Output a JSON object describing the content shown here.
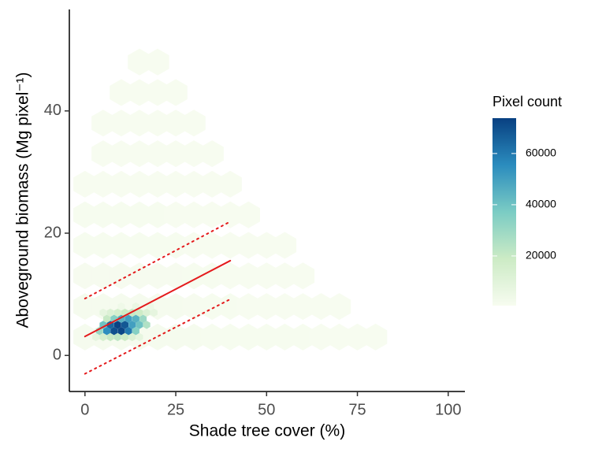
{
  "chart_data": {
    "type": "hexbin",
    "x_label": "Shade tree cover (%)",
    "y_label": "Aboveground biomass (Mg pixel⁻¹)",
    "legend_title": "Pixel count",
    "xlim": [
      -4.3,
      104.6
    ],
    "ylim": [
      -5.9,
      56.6
    ],
    "xticks": [
      0,
      25,
      50,
      75,
      100
    ],
    "yticks": [
      0,
      20,
      40
    ],
    "clim": [
      600,
      73800
    ],
    "cticks": [
      20000,
      40000,
      60000
    ],
    "colors": [
      "#f7fcf0",
      "#ccebc5",
      "#7bccc4",
      "#2b8cbe",
      "#084081"
    ],
    "cells": [
      [
        0,
        3,
        1500
      ],
      [
        5,
        3,
        1500
      ],
      [
        10,
        3,
        1500
      ],
      [
        15,
        3,
        1500
      ],
      [
        20,
        3,
        1500
      ],
      [
        25,
        3,
        1500
      ],
      [
        30,
        3,
        1500
      ],
      [
        35,
        3,
        900
      ],
      [
        40,
        3,
        900
      ],
      [
        45,
        3,
        900
      ],
      [
        50,
        3,
        900
      ],
      [
        55,
        3,
        900
      ],
      [
        60,
        3,
        900
      ],
      [
        65,
        3,
        300
      ],
      [
        70,
        3,
        300
      ],
      [
        75,
        3,
        300
      ],
      [
        80,
        3,
        300
      ],
      [
        0,
        8,
        1500
      ],
      [
        5,
        8,
        1500
      ],
      [
        10,
        8,
        1500
      ],
      [
        15,
        8,
        1500
      ],
      [
        20,
        8,
        1500
      ],
      [
        25,
        8,
        1500
      ],
      [
        30,
        8,
        1200
      ],
      [
        35,
        8,
        900
      ],
      [
        40,
        8,
        900
      ],
      [
        45,
        8,
        600
      ],
      [
        50,
        8,
        600
      ],
      [
        55,
        8,
        300
      ],
      [
        60,
        8,
        300
      ],
      [
        65,
        8,
        300
      ],
      [
        70,
        8,
        300
      ],
      [
        0,
        13,
        1200
      ],
      [
        5,
        13,
        1200
      ],
      [
        10,
        13,
        1200
      ],
      [
        15,
        13,
        1200
      ],
      [
        20,
        13,
        1200
      ],
      [
        25,
        13,
        1200
      ],
      [
        30,
        13,
        900
      ],
      [
        35,
        13,
        900
      ],
      [
        40,
        13,
        600
      ],
      [
        45,
        13,
        600
      ],
      [
        50,
        13,
        300
      ],
      [
        55,
        13,
        300
      ],
      [
        60,
        13,
        300
      ],
      [
        0,
        18,
        900
      ],
      [
        5,
        18,
        900
      ],
      [
        10,
        18,
        900
      ],
      [
        15,
        18,
        900
      ],
      [
        20,
        18,
        900
      ],
      [
        25,
        18,
        900
      ],
      [
        30,
        18,
        600
      ],
      [
        35,
        18,
        600
      ],
      [
        40,
        18,
        600
      ],
      [
        45,
        18,
        300
      ],
      [
        50,
        18,
        300
      ],
      [
        55,
        18,
        300
      ],
      [
        0,
        23,
        900
      ],
      [
        5,
        23,
        900
      ],
      [
        10,
        23,
        900
      ],
      [
        15,
        23,
        900
      ],
      [
        20,
        23,
        900
      ],
      [
        25,
        23,
        600
      ],
      [
        30,
        23,
        600
      ],
      [
        35,
        23,
        300
      ],
      [
        40,
        23,
        300
      ],
      [
        45,
        23,
        300
      ],
      [
        0,
        28,
        600
      ],
      [
        5,
        28,
        600
      ],
      [
        10,
        28,
        600
      ],
      [
        15,
        28,
        600
      ],
      [
        20,
        28,
        600
      ],
      [
        25,
        28,
        600
      ],
      [
        30,
        28,
        300
      ],
      [
        35,
        28,
        300
      ],
      [
        40,
        28,
        300
      ],
      [
        5,
        33,
        600
      ],
      [
        10,
        33,
        600
      ],
      [
        15,
        33,
        600
      ],
      [
        20,
        33,
        600
      ],
      [
        25,
        33,
        300
      ],
      [
        30,
        33,
        300
      ],
      [
        35,
        33,
        300
      ],
      [
        5,
        38,
        300
      ],
      [
        10,
        38,
        300
      ],
      [
        15,
        38,
        300
      ],
      [
        20,
        38,
        300
      ],
      [
        25,
        38,
        300
      ],
      [
        30,
        38,
        300
      ],
      [
        10,
        43,
        300
      ],
      [
        15,
        43,
        300
      ],
      [
        20,
        43,
        300
      ],
      [
        25,
        43,
        300
      ],
      [
        15,
        48,
        300
      ],
      [
        20,
        48,
        300
      ],
      [
        3,
        3,
        8000
      ],
      [
        5,
        3,
        15000
      ],
      [
        7,
        3,
        20000
      ],
      [
        9,
        3,
        22000
      ],
      [
        11,
        3,
        18000
      ],
      [
        13,
        3,
        12000
      ],
      [
        15,
        3,
        8000
      ],
      [
        4,
        4,
        30000
      ],
      [
        6,
        4,
        55000
      ],
      [
        8,
        4,
        70000
      ],
      [
        10,
        4,
        72000
      ],
      [
        12,
        4,
        60000
      ],
      [
        14,
        4,
        35000
      ],
      [
        5,
        5,
        40000
      ],
      [
        7,
        5,
        65000
      ],
      [
        9,
        5,
        73000
      ],
      [
        11,
        5,
        68000
      ],
      [
        13,
        5,
        50000
      ],
      [
        15,
        5,
        40000
      ],
      [
        17,
        5,
        25000
      ],
      [
        6,
        6,
        20000
      ],
      [
        8,
        6,
        35000
      ],
      [
        10,
        6,
        45000
      ],
      [
        12,
        6,
        50000
      ],
      [
        14,
        6,
        45000
      ],
      [
        16,
        6,
        30000
      ],
      [
        5,
        7,
        8000
      ],
      [
        7,
        7,
        12000
      ],
      [
        9,
        7,
        15000
      ],
      [
        11,
        7,
        18000
      ],
      [
        13,
        7,
        20000
      ],
      [
        15,
        7,
        18000
      ],
      [
        17,
        7,
        12000
      ],
      [
        19,
        7,
        8000
      ],
      [
        10,
        8,
        4000
      ],
      [
        14,
        8,
        6000
      ],
      [
        18,
        8,
        5000
      ]
    ],
    "lines": [
      {
        "style": "solid",
        "color": "#e41a1c",
        "x": [
          0,
          40
        ],
        "y": [
          3.1,
          15.5
        ]
      },
      {
        "style": "dotted",
        "color": "#e41a1c",
        "x": [
          0,
          40
        ],
        "y": [
          9.3,
          21.9
        ]
      },
      {
        "style": "dotted",
        "color": "#e41a1c",
        "x": [
          0,
          40
        ],
        "y": [
          -3,
          9.2
        ]
      }
    ]
  }
}
